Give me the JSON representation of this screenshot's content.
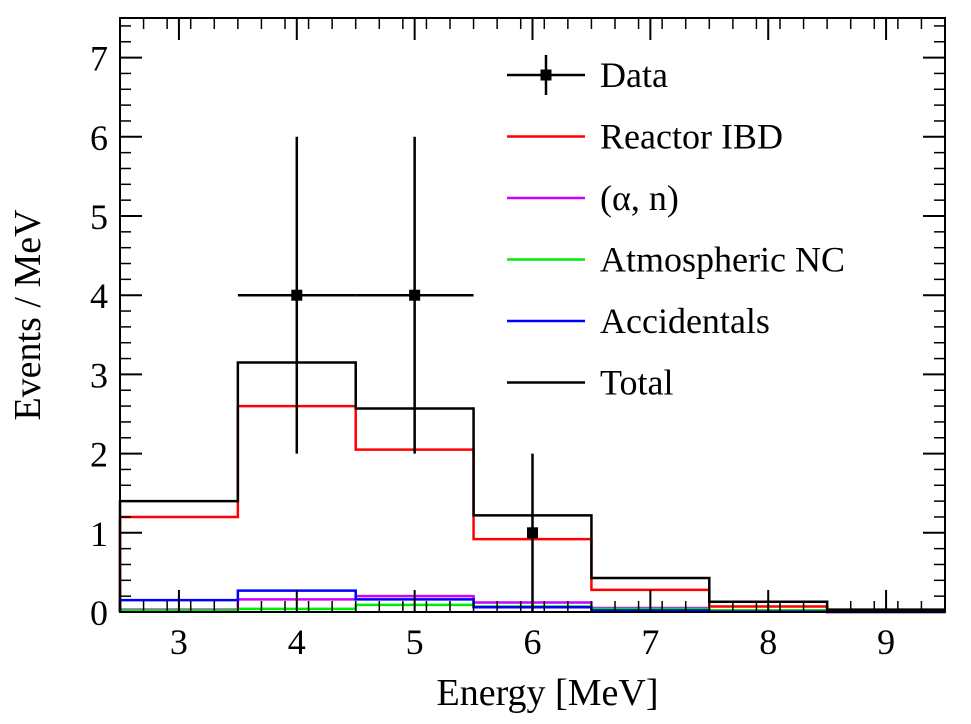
{
  "chart_data": {
    "type": "histogram",
    "xlabel": "Energy [MeV]",
    "ylabel": "Events / MeV",
    "xlim": [
      2.5,
      9.5
    ],
    "ylim": [
      0,
      7.5
    ],
    "x_ticks": [
      3,
      4,
      5,
      6,
      7,
      8,
      9
    ],
    "y_ticks": [
      0,
      1,
      2,
      3,
      4,
      5,
      6,
      7
    ],
    "grid": false,
    "legend_position": "top-right",
    "bin_edges": [
      2.5,
      3.5,
      4.5,
      5.5,
      6.5,
      7.5,
      8.5,
      9.5
    ],
    "series": [
      {
        "name": "Reactor IBD",
        "color": "#ff0000",
        "values": [
          1.2,
          2.6,
          2.05,
          0.92,
          0.28,
          0.07,
          0.01
        ]
      },
      {
        "name": "(α, n)",
        "color": "#cc00ff",
        "values": [
          0.03,
          0.16,
          0.2,
          0.12,
          0.05,
          0.02,
          0.0
        ]
      },
      {
        "name": "Atmospheric NC",
        "color": "#00ee00",
        "values": [
          0.02,
          0.04,
          0.09,
          0.07,
          0.04,
          0.02,
          0.01
        ]
      },
      {
        "name": "Accidentals",
        "color": "#0000ff",
        "values": [
          0.15,
          0.27,
          0.16,
          0.06,
          0.02,
          0.005,
          0.0
        ]
      },
      {
        "name": "Total",
        "color": "#000000",
        "values": [
          1.4,
          3.15,
          2.57,
          1.22,
          0.43,
          0.13,
          0.03
        ]
      }
    ],
    "data_points": {
      "name": "Data",
      "color": "#000000",
      "points": [
        {
          "x": 4,
          "y": 4,
          "xerr": 0.5,
          "yerr_low": 2,
          "yerr_high": 2
        },
        {
          "x": 5,
          "y": 4,
          "xerr": 0.5,
          "yerr_low": 2,
          "yerr_high": 2
        },
        {
          "x": 6,
          "y": 1,
          "xerr": 0.0,
          "yerr_low": 1,
          "yerr_high": 1
        }
      ]
    }
  }
}
